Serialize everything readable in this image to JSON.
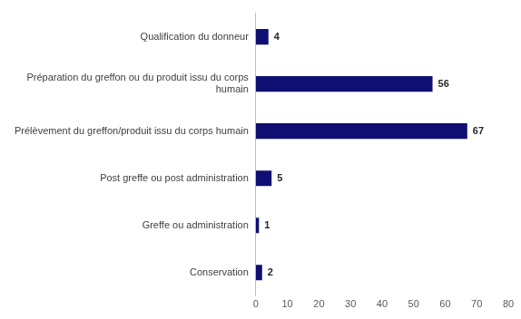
{
  "chart_data": {
    "type": "bar",
    "orientation": "horizontal",
    "categories": [
      "Qualification du donneur",
      "Préparation du greffon ou du produit issu du corps humain",
      "Prélèvement du greffon/produit issu du corps humain",
      "Post greffe ou post administration",
      "Greffe ou administration",
      "Conservation"
    ],
    "values": [
      4,
      56,
      67,
      5,
      1,
      2
    ],
    "color": "#0f0f73",
    "xlim": [
      0,
      80
    ],
    "xticks": [
      0,
      10,
      20,
      30,
      40,
      50,
      60,
      70,
      80
    ],
    "grid": false,
    "data_labels": true
  }
}
